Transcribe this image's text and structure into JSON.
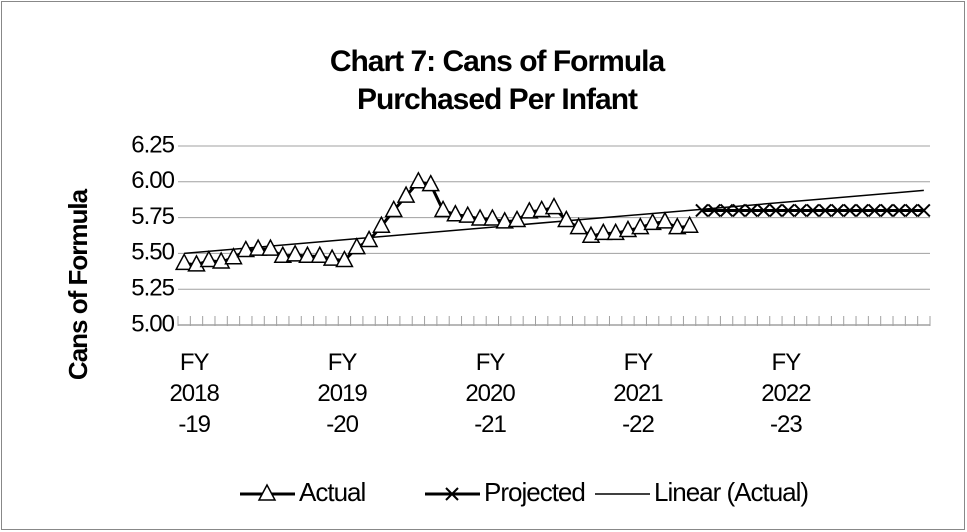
{
  "chart_data": {
    "type": "line",
    "title": [
      "Chart 7: Cans of Formula",
      "Purchased Per Infant"
    ],
    "y_label": "Cans of Formula",
    "categories": [
      "FY 2018 -19",
      null,
      null,
      null,
      null,
      null,
      null,
      null,
      null,
      null,
      null,
      null,
      "FY 2019 -20",
      null,
      null,
      null,
      null,
      null,
      null,
      null,
      null,
      null,
      null,
      null,
      "FY 2020 -21",
      null,
      null,
      null,
      null,
      null,
      null,
      null,
      null,
      null,
      null,
      null,
      "FY 2021 -22",
      null,
      null,
      null,
      null,
      null,
      null,
      null,
      null,
      null,
      null,
      null,
      "FY 2022 -23",
      null,
      null,
      null,
      null,
      null,
      null,
      null,
      null,
      null,
      null,
      null,
      null
    ],
    "series": [
      {
        "name": "Actual",
        "color": "#000000",
        "marker": "triangle",
        "values": [
          5.43,
          5.42,
          5.45,
          5.44,
          5.47,
          5.52,
          5.53,
          5.53,
          5.48,
          5.49,
          5.48,
          5.48,
          5.46,
          5.45,
          5.54,
          5.59,
          5.69,
          5.8,
          5.9,
          6.0,
          5.98,
          5.8,
          5.77,
          5.76,
          5.74,
          5.74,
          5.72,
          5.73,
          5.79,
          5.8,
          5.82,
          5.73,
          5.68,
          5.62,
          5.64,
          5.64,
          5.66,
          5.68,
          5.71,
          5.72,
          5.68,
          5.69,
          null,
          null,
          null,
          null,
          null,
          null,
          null,
          null,
          null,
          null,
          null,
          null,
          null,
          null,
          null,
          null,
          null,
          null,
          null
        ]
      },
      {
        "name": "Projected",
        "color": "#000000",
        "marker": "x",
        "values": [
          null,
          null,
          null,
          null,
          null,
          null,
          null,
          null,
          null,
          null,
          null,
          null,
          null,
          null,
          null,
          null,
          null,
          null,
          null,
          null,
          null,
          null,
          null,
          null,
          null,
          null,
          null,
          null,
          null,
          null,
          null,
          null,
          null,
          null,
          null,
          null,
          null,
          null,
          null,
          null,
          null,
          null,
          5.8,
          5.8,
          5.8,
          5.8,
          5.8,
          5.8,
          5.8,
          5.8,
          5.8,
          5.8,
          5.8,
          5.8,
          5.8,
          5.8,
          5.8,
          5.8,
          5.8,
          5.8,
          5.8
        ]
      }
    ],
    "trendline": {
      "name": "Linear (Actual)",
      "color": "#000000",
      "values": [
        5.5,
        5.94
      ]
    },
    "ylim": [
      5.0,
      6.25
    ],
    "yticks": [
      {
        "value": 5.0,
        "label": "5.00"
      },
      5.25,
      {
        "value": 5.5,
        "label": "5.50"
      },
      5.75,
      {
        "value": 6.0,
        "label": "6.00"
      },
      6.25
    ],
    "grid": true,
    "legend": "bottom"
  }
}
